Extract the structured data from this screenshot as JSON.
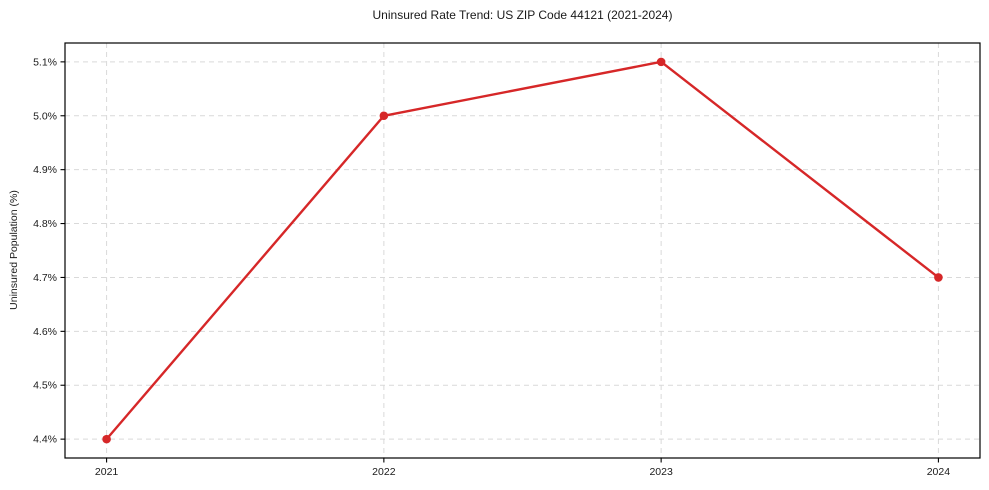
{
  "chart_data": {
    "type": "line",
    "title": "Uninsured Rate Trend: US ZIP Code 44121 (2021-2024)",
    "xlabel": "",
    "ylabel": "Uninsured Population (%)",
    "x": [
      2021,
      2022,
      2023,
      2024
    ],
    "values": [
      4.4,
      5.0,
      5.1,
      4.7
    ],
    "x_tick_labels": [
      "2021",
      "2022",
      "2023",
      "2024"
    ],
    "y_ticks": [
      4.4,
      4.5,
      4.6,
      4.7,
      4.8,
      4.9,
      5.0,
      5.1
    ],
    "y_tick_labels": [
      "4.4%",
      "4.5%",
      "4.6%",
      "4.7%",
      "4.8%",
      "4.9%",
      "5.0%",
      "5.1%"
    ],
    "xlim": [
      2020.85,
      2024.15
    ],
    "ylim": [
      4.365,
      5.135
    ],
    "grid": true,
    "grid_style": "dashed",
    "grid_color": "#d9d9d9",
    "line_color": "#d62728",
    "marker": "circle",
    "spine_color": "#000000",
    "legend_position": "none"
  }
}
